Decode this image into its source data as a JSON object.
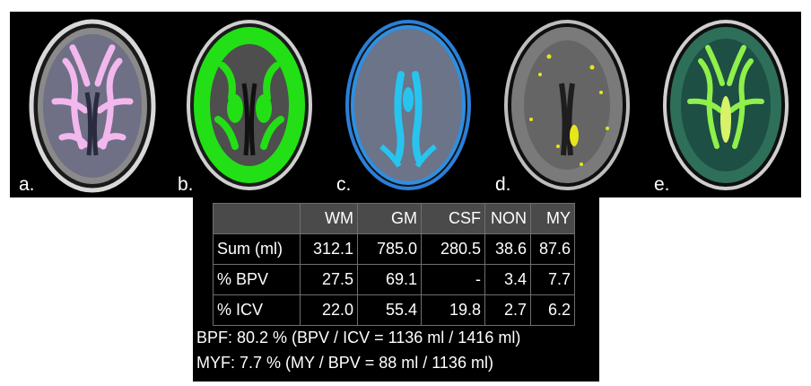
{
  "panels": [
    {
      "label": "a.",
      "overlay": "white-matter",
      "color": "#f2b8ee"
    },
    {
      "label": "b.",
      "overlay": "gray-matter",
      "color": "#22e015"
    },
    {
      "label": "c.",
      "overlay": "csf",
      "color": "#27c4f0"
    },
    {
      "label": "d.",
      "overlay": "non-myelinated",
      "color": "#e6e619"
    },
    {
      "label": "e.",
      "overlay": "myelin",
      "color": "#8ff04a"
    }
  ],
  "table": {
    "columns": [
      "",
      "WM",
      "GM",
      "CSF",
      "NON",
      "MY"
    ],
    "rows": [
      {
        "label": "Sum (ml)",
        "values": [
          "312.1",
          "785.0",
          "280.5",
          "38.6",
          "87.6"
        ]
      },
      {
        "label": "% BPV",
        "values": [
          "27.5",
          "69.1",
          "-",
          "3.4",
          "7.7"
        ]
      },
      {
        "label": "% ICV",
        "values": [
          "22.0",
          "55.4",
          "19.8",
          "2.7",
          "6.2"
        ]
      }
    ]
  },
  "summary": {
    "bpf": "BPF: 80.2 % (BPV / ICV = 1136 ml / 1416 ml)",
    "myf": "MYF: 7.7 % (MY / BPV = 88 ml / 1136 ml)"
  }
}
